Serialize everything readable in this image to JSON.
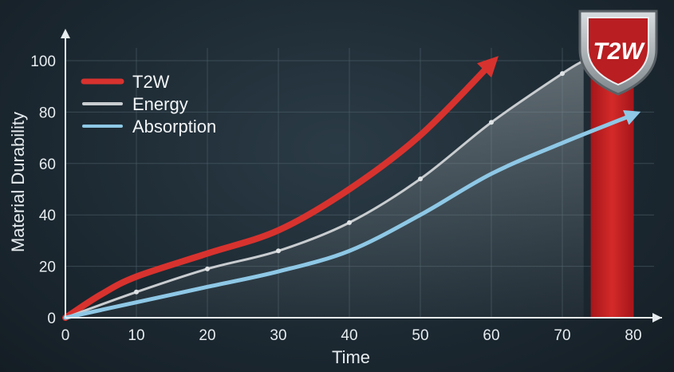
{
  "chart_data": {
    "type": "line",
    "title": "",
    "xlabel": "Time",
    "ylabel": "Material Durability",
    "xlim": [
      0,
      80
    ],
    "ylim": [
      0,
      100
    ],
    "xticks": [
      0,
      10,
      20,
      30,
      40,
      50,
      60,
      70,
      80
    ],
    "yticks": [
      0,
      20,
      40,
      60,
      80,
      100
    ],
    "grid": true,
    "legend_position": "top-left",
    "series": [
      {
        "name": "T2W",
        "color": "#d8322e",
        "style": "arrow",
        "x": [
          0,
          5,
          10,
          20,
          30,
          40,
          50,
          60
        ],
        "y": [
          0,
          9,
          16,
          25,
          34,
          50,
          71,
          99
        ]
      },
      {
        "name": "Energy",
        "color": "#c9cdd0",
        "style": "area",
        "x": [
          0,
          10,
          20,
          30,
          40,
          50,
          60,
          70,
          73
        ],
        "y": [
          0,
          10,
          19,
          26,
          37,
          54,
          76,
          95,
          100
        ]
      },
      {
        "name": "Absorption",
        "color": "#8ec8e6",
        "style": "arrow",
        "x": [
          0,
          10,
          20,
          30,
          40,
          50,
          60,
          70,
          80
        ],
        "y": [
          0,
          6,
          12,
          18,
          26,
          40,
          56,
          68,
          79
        ]
      }
    ],
    "highlight_band": {
      "x0": 74,
      "x1": 80,
      "color": "#c8201f"
    }
  },
  "logo": {
    "text": "T2W",
    "icon": "shield-icon"
  }
}
